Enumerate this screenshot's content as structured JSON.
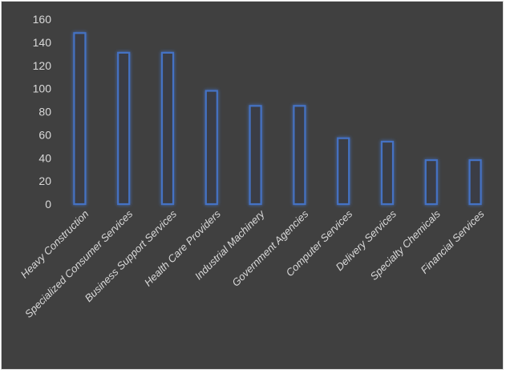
{
  "chart_data": {
    "type": "bar",
    "title": "",
    "xlabel": "",
    "ylabel": "",
    "categories": [
      "Heavy Construction",
      "Specialized Consumer Services",
      "Business Support Services",
      "Health Care Providers",
      "Industrial Machinery",
      "Government Agencies",
      "Computer Services",
      "Delivery Services",
      "Specialty Chemicals",
      "Financial Services"
    ],
    "values": [
      148,
      131,
      131,
      98,
      85,
      85,
      57,
      54,
      38,
      38
    ],
    "ylim": [
      0,
      160
    ],
    "yticks": [
      0,
      20,
      40,
      60,
      80,
      100,
      120,
      140,
      160
    ],
    "grid": false,
    "legend": "none",
    "colors": {
      "background": "#404040",
      "bar_fill": "#3a3d44",
      "bar_stroke": "#4472c4",
      "bar_glow": "#2f6fe8",
      "text": "#d9d9d9"
    }
  }
}
